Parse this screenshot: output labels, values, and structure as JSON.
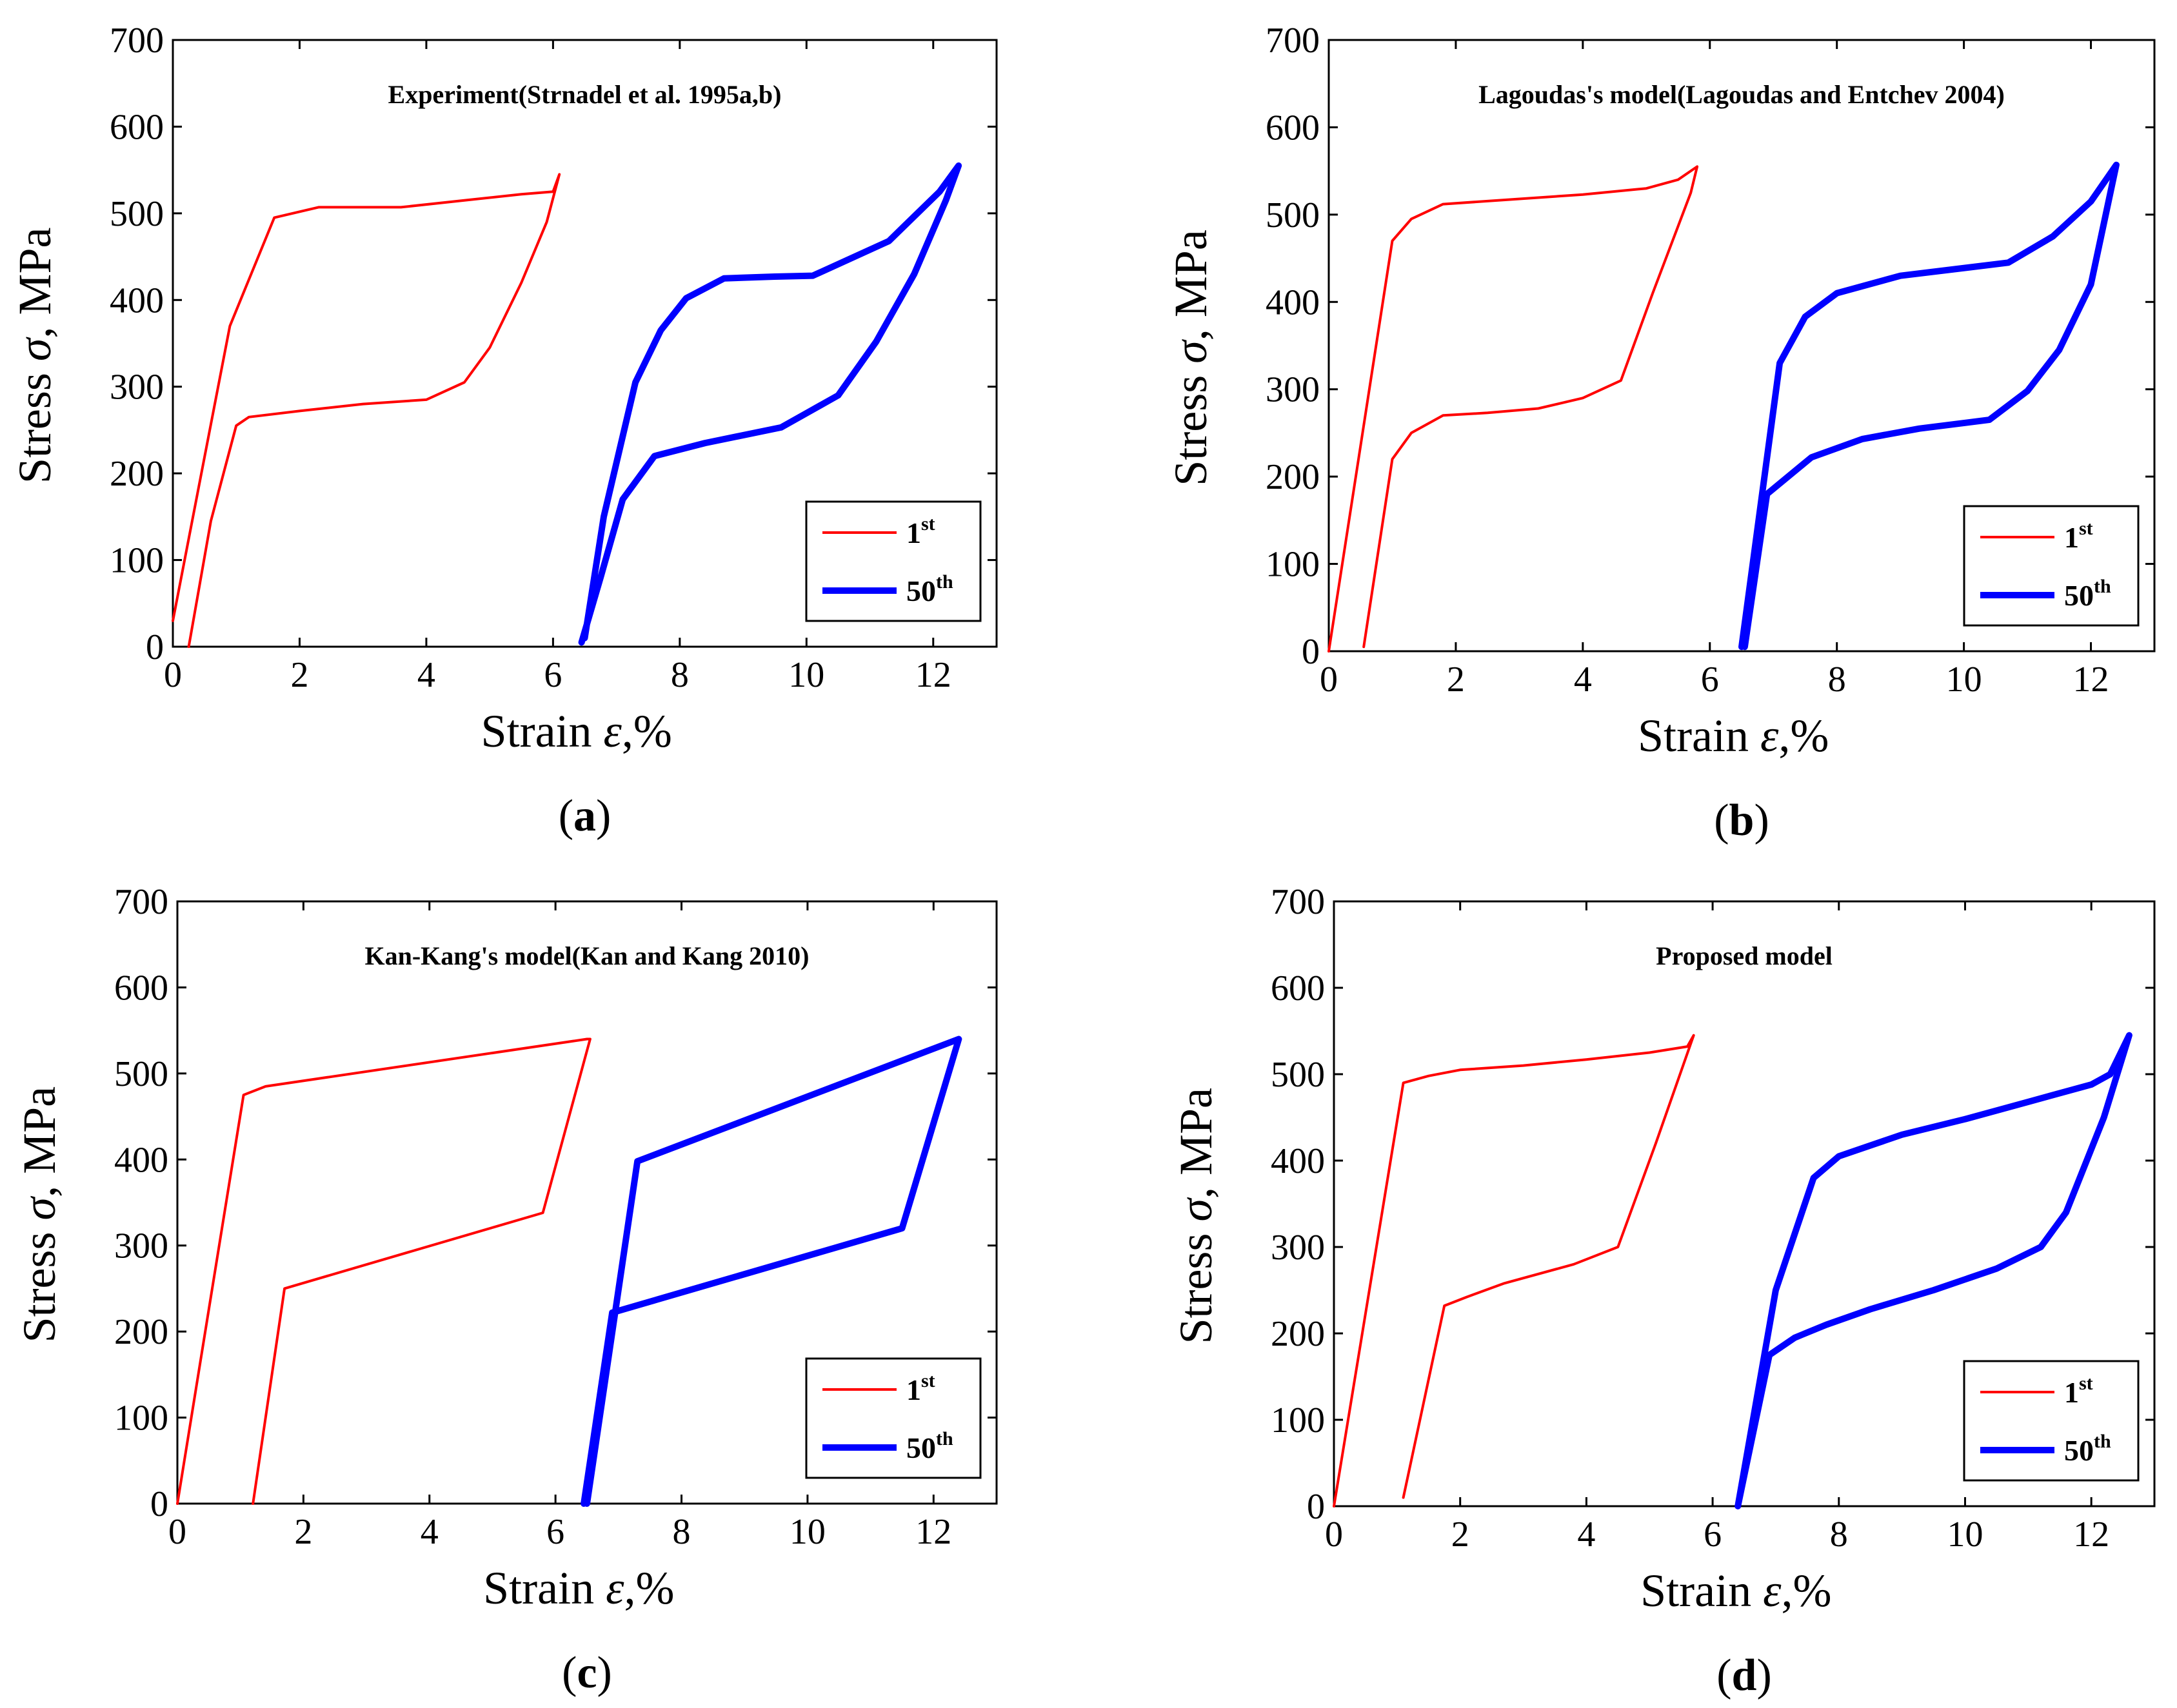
{
  "figure": {
    "panels": [
      {
        "letter": "a",
        "open": "(",
        "close": ")"
      },
      {
        "letter": "b",
        "open": "(",
        "close": ")"
      },
      {
        "letter": "c",
        "open": "(",
        "close": ")"
      },
      {
        "letter": "d",
        "open": "(",
        "close": ")"
      }
    ]
  },
  "chart_data": [
    {
      "type": "line",
      "title": "Experiment(Strnadel et al. 1995a,b)",
      "xlabel_text": "Strain",
      "xlabel_symbol": "ε",
      "xlabel_unit": ",%",
      "ylabel_text": "Stress",
      "ylabel_symbol": "σ",
      "ylabel_unit": ", MPa",
      "xlim": [
        0,
        13
      ],
      "ylim": [
        0,
        700
      ],
      "xticks": [
        0,
        2,
        4,
        6,
        8,
        10,
        12
      ],
      "yticks": [
        0,
        100,
        200,
        300,
        400,
        500,
        600,
        700
      ],
      "legend_position": "bottom-right",
      "series": [
        {
          "name": "1st",
          "label_base": "1",
          "label_sup": "st",
          "color": "#ff0000",
          "width": "thin",
          "x": [
            0.0,
            0.9,
            1.6,
            2.3,
            3.6,
            4.6,
            5.5,
            6.0,
            6.1,
            5.9,
            5.5,
            5.0,
            4.6,
            4.0,
            3.0,
            2.0,
            1.2,
            1.0,
            0.6,
            0.25
          ],
          "y": [
            30,
            370,
            495,
            507,
            507,
            515,
            522,
            525,
            545,
            490,
            420,
            345,
            305,
            285,
            280,
            272,
            265,
            255,
            145,
            0
          ]
        },
        {
          "name": "50th",
          "label_base": "50",
          "label_sup": "th",
          "color": "#0000ff",
          "width": "thick",
          "x": [
            6.5,
            6.8,
            7.3,
            7.7,
            8.1,
            8.7,
            9.5,
            10.1,
            11.3,
            12.1,
            12.4,
            12.2,
            11.7,
            11.1,
            10.5,
            9.6,
            8.4,
            7.6,
            7.1,
            6.75,
            6.45
          ],
          "y": [
            10,
            150,
            305,
            365,
            402,
            425,
            427,
            428,
            468,
            525,
            555,
            515,
            430,
            352,
            290,
            253,
            235,
            220,
            170,
            80,
            5
          ]
        }
      ]
    },
    {
      "type": "line",
      "title": "Lagoudas's model(Lagoudas and Entchev 2004)",
      "xlabel_text": "Strain",
      "xlabel_symbol": "ε",
      "xlabel_unit": ",%",
      "ylabel_text": "Stress",
      "ylabel_symbol": "σ",
      "ylabel_unit": ", MPa",
      "xlim": [
        0,
        13
      ],
      "ylim": [
        0,
        700
      ],
      "xticks": [
        0,
        2,
        4,
        6,
        8,
        10,
        12
      ],
      "yticks": [
        0,
        100,
        200,
        300,
        400,
        500,
        600,
        700
      ],
      "legend_position": "bottom-right",
      "series": [
        {
          "name": "1st",
          "label_base": "1",
          "label_sup": "st",
          "color": "#ff0000",
          "width": "thin",
          "x": [
            0.0,
            1.0,
            1.3,
            1.8,
            3.0,
            4.0,
            5.0,
            5.5,
            5.8,
            5.7,
            5.1,
            4.6,
            4.0,
            3.3,
            2.5,
            1.8,
            1.3,
            1.0,
            0.55
          ],
          "y": [
            0,
            470,
            495,
            512,
            518,
            523,
            530,
            540,
            555,
            525,
            410,
            310,
            290,
            278,
            273,
            270,
            250,
            220,
            5
          ]
        },
        {
          "name": "50th",
          "label_base": "50",
          "label_sup": "th",
          "color": "#0000ff",
          "width": "thick",
          "x": [
            6.5,
            7.1,
            7.5,
            8.0,
            9.0,
            10.7,
            11.4,
            12.0,
            12.4,
            12.0,
            11.5,
            11.0,
            10.4,
            9.3,
            8.4,
            7.6,
            6.9,
            6.55
          ],
          "y": [
            5,
            330,
            383,
            410,
            430,
            445,
            475,
            515,
            557,
            420,
            345,
            298,
            265,
            255,
            243,
            222,
            180,
            5
          ]
        }
      ]
    },
    {
      "type": "line",
      "title": "Kan-Kang's model(Kan and Kang 2010)",
      "xlabel_text": "Strain",
      "xlabel_symbol": "ε",
      "xlabel_unit": ",%",
      "ylabel_text": "Stress",
      "ylabel_symbol": "σ",
      "ylabel_unit": ", MPa",
      "xlim": [
        0,
        13
      ],
      "ylim": [
        0,
        700
      ],
      "xticks": [
        0,
        2,
        4,
        6,
        8,
        10,
        12
      ],
      "yticks": [
        0,
        100,
        200,
        300,
        400,
        500,
        600,
        700
      ],
      "legend_position": "bottom-right",
      "series": [
        {
          "name": "1st",
          "label_base": "1",
          "label_sup": "st",
          "color": "#ff0000",
          "width": "thin",
          "x": [
            0.0,
            1.05,
            1.4,
            6.5,
            6.55,
            5.8,
            1.7,
            1.2
          ],
          "y": [
            0,
            475,
            485,
            540,
            540,
            338,
            250,
            0
          ]
        },
        {
          "name": "50th",
          "label_base": "50",
          "label_sup": "th",
          "color": "#0000ff",
          "width": "thick",
          "x": [
            6.5,
            7.3,
            12.4,
            11.5,
            6.9,
            6.45
          ],
          "y": [
            0,
            398,
            540,
            320,
            222,
            0
          ]
        }
      ]
    },
    {
      "type": "line",
      "title": "Proposed model",
      "xlabel_text": "Strain",
      "xlabel_symbol": "ε",
      "xlabel_unit": ",%",
      "ylabel_text": "Stress",
      "ylabel_symbol": "σ",
      "ylabel_unit": ", MPa",
      "xlim": [
        0,
        13
      ],
      "ylim": [
        0,
        700
      ],
      "xticks": [
        0,
        2,
        4,
        6,
        8,
        10,
        12
      ],
      "yticks": [
        0,
        100,
        200,
        300,
        400,
        500,
        600,
        700
      ],
      "legend_position": "bottom-right",
      "series": [
        {
          "name": "1st",
          "label_base": "1",
          "label_sup": "st",
          "color": "#ff0000",
          "width": "thin",
          "x": [
            0.0,
            1.1,
            1.5,
            2.0,
            3.0,
            4.0,
            5.0,
            5.6,
            5.7,
            5.1,
            4.5,
            3.8,
            2.7,
            2.1,
            1.75,
            1.1
          ],
          "y": [
            0,
            490,
            498,
            505,
            510,
            517,
            525,
            532,
            545,
            420,
            300,
            280,
            258,
            242,
            232,
            10
          ]
        },
        {
          "name": "50th",
          "label_base": "50",
          "label_sup": "th",
          "color": "#0000ff",
          "width": "thick",
          "x": [
            6.4,
            7.0,
            7.6,
            8.0,
            9.0,
            10.0,
            11.0,
            12.0,
            12.3,
            12.6,
            12.2,
            11.6,
            11.2,
            10.5,
            9.5,
            8.5,
            7.8,
            7.3,
            6.9,
            6.4
          ],
          "y": [
            0,
            250,
            380,
            405,
            430,
            448,
            468,
            488,
            500,
            545,
            450,
            340,
            300,
            275,
            250,
            228,
            210,
            195,
            175,
            0
          ]
        }
      ]
    }
  ]
}
